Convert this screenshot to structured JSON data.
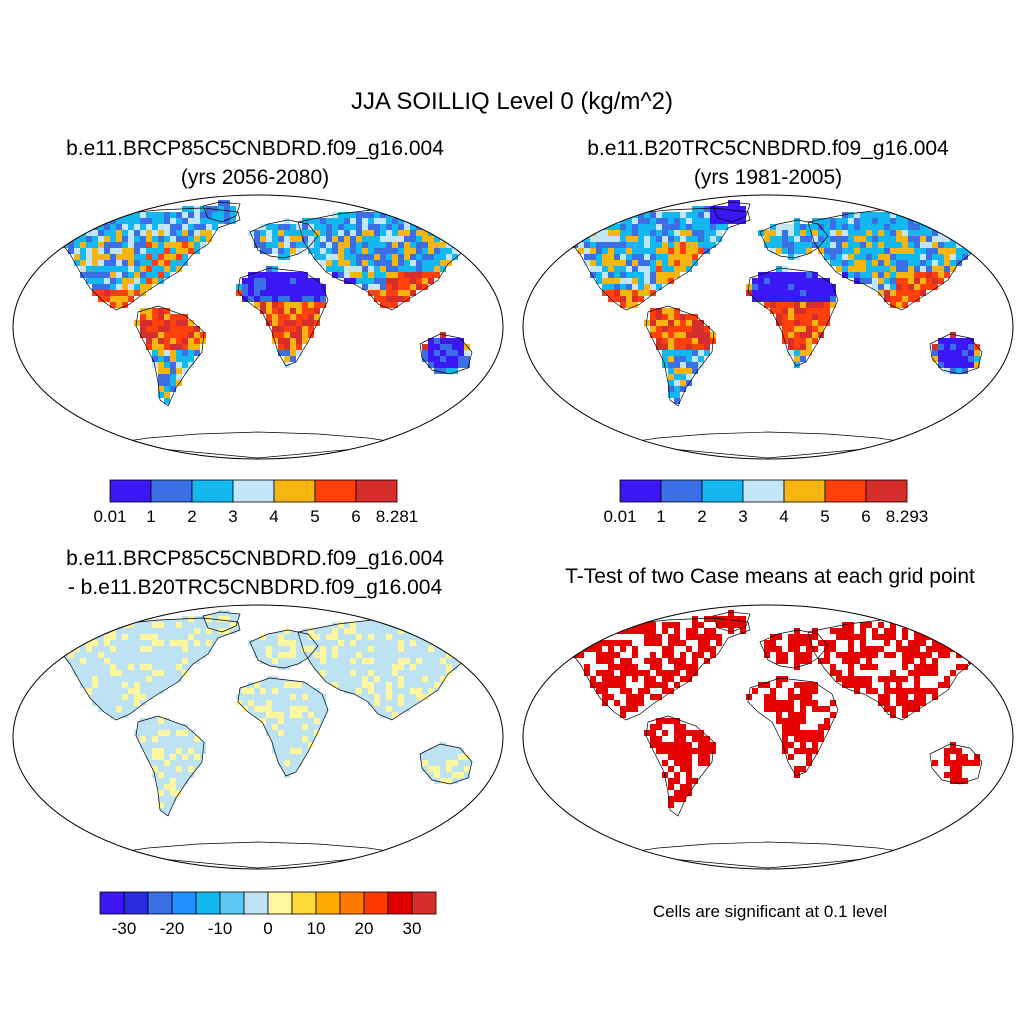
{
  "main_title": "JJA SOILLIQ Level 0 (kg/m^2)",
  "panels": [
    {
      "title_line1": "b.e11.BRCP85C5CNBDRD.f09_g16.004",
      "title_line2": "(yrs 2056-2080)"
    },
    {
      "title_line1": "b.e11.B20TRC5CNBDRD.f09_g16.004",
      "title_line2": "(yrs 1981-2005)"
    },
    {
      "title_line1": "b.e11.BRCP85C5CNBDRD.f09_g16.004",
      "title_line2": "- b.e11.B20TRC5CNBDRD.f09_g16.004"
    },
    {
      "title_line1": "T-Test of two Case means at each grid point"
    }
  ],
  "colorbars": [
    {
      "colors": [
        "#3b17f5",
        "#3a6fe6",
        "#14b8f0",
        "#c2e6f5",
        "#f7b50f",
        "#ff400a",
        "#d62d2d"
      ],
      "labels": [
        "0.01",
        "1",
        "2",
        "3",
        "4",
        "5",
        "6",
        "8.281"
      ]
    },
    {
      "colors": [
        "#3b17f5",
        "#3a6fe6",
        "#14b8f0",
        "#c2e6f5",
        "#f7b50f",
        "#ff400a",
        "#d62d2d"
      ],
      "labels": [
        "0.01",
        "1",
        "2",
        "3",
        "4",
        "5",
        "6",
        "8.293"
      ]
    },
    {
      "colors": [
        "#3b17f5",
        "#2a2ae0",
        "#3a6fe6",
        "#1e90ff",
        "#14b8f0",
        "#5cc7f0",
        "#bde3f3",
        "#fff6a0",
        "#ffd83a",
        "#ffaa00",
        "#ff7a00",
        "#ff3a00",
        "#e00000",
        "#d62d2d"
      ],
      "labels": [
        "-30",
        "-20",
        "-10",
        "0",
        "10",
        "20",
        "30"
      ]
    }
  ],
  "significance_note": "Cells are significant at 0.1 level",
  "significance_color": "#e60000"
}
